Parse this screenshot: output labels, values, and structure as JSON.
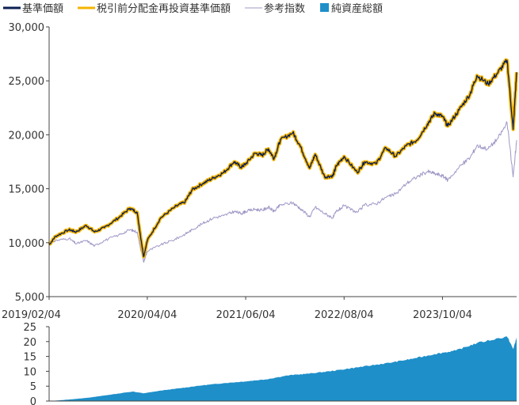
{
  "legend": [
    {
      "label": "基準価額",
      "color": "#0b1f55",
      "marker": "line"
    },
    {
      "label": "税引前分配金再投資基準価額",
      "color": "#f5b400",
      "marker": "line"
    },
    {
      "label": "参考指数",
      "color": "#9f97c6",
      "marker": "line"
    },
    {
      "label": "純資産総額",
      "color": "#1e8fc9",
      "marker": "square"
    }
  ],
  "chart_data": [
    {
      "type": "line",
      "y_ticks": [
        "30,000",
        "25,000",
        "20,000",
        "15,000",
        "10,000",
        "5,000"
      ],
      "y_tick_values": [
        30000,
        25000,
        20000,
        15000,
        10000,
        5000
      ],
      "ylim": [
        5000,
        30000
      ],
      "x_ticks": [
        "2019/02/04",
        "2020/04/04",
        "2021/06/04",
        "2022/08/04",
        "2023/10/04"
      ],
      "x_tick_dates": [
        "2019-02-04",
        "2020-04-04",
        "2021-06-04",
        "2022-08-04",
        "2023-10-04"
      ],
      "xlim": [
        "2019-02-04",
        "2024-08-20"
      ],
      "grid": false,
      "legend_position": "top",
      "series": [
        {
          "name": "税引前分配金再投資基準価額",
          "color": "#f5b400",
          "points": [
            [
              "2019-02-04",
              9800
            ],
            [
              "2019-03-04",
              10600
            ],
            [
              "2019-05-01",
              11200
            ],
            [
              "2019-06-01",
              11000
            ],
            [
              "2019-07-15",
              11600
            ],
            [
              "2019-08-20",
              11000
            ],
            [
              "2019-10-01",
              11400
            ],
            [
              "2019-12-01",
              12300
            ],
            [
              "2020-01-20",
              13200
            ],
            [
              "2020-02-20",
              12800
            ],
            [
              "2020-03-19",
              8700
            ],
            [
              "2020-04-04",
              10200
            ],
            [
              "2020-06-01",
              12300
            ],
            [
              "2020-08-01",
              13300
            ],
            [
              "2020-09-15",
              13800
            ],
            [
              "2020-10-15",
              14900
            ],
            [
              "2020-12-01",
              15500
            ],
            [
              "2021-01-15",
              16000
            ],
            [
              "2021-03-01",
              16500
            ],
            [
              "2021-04-15",
              17500
            ],
            [
              "2021-05-15",
              17000
            ],
            [
              "2021-06-04",
              17300
            ],
            [
              "2021-07-15",
              18300
            ],
            [
              "2021-08-15",
              18100
            ],
            [
              "2021-09-10",
              18700
            ],
            [
              "2021-10-05",
              17800
            ],
            [
              "2021-11-01",
              19500
            ],
            [
              "2021-12-25",
              20200
            ],
            [
              "2022-01-25",
              19000
            ],
            [
              "2022-03-08",
              16900
            ],
            [
              "2022-04-01",
              18200
            ],
            [
              "2022-05-12",
              16100
            ],
            [
              "2022-06-17",
              16200
            ],
            [
              "2022-07-01",
              17100
            ],
            [
              "2022-08-04",
              18000
            ],
            [
              "2022-09-30",
              16500
            ],
            [
              "2022-11-01",
              17500
            ],
            [
              "2022-12-20",
              17300
            ],
            [
              "2023-02-01",
              18800
            ],
            [
              "2023-03-15",
              18000
            ],
            [
              "2023-05-01",
              19000
            ],
            [
              "2023-06-15",
              19500
            ],
            [
              "2023-07-31",
              21000
            ],
            [
              "2023-09-01",
              22000
            ],
            [
              "2023-10-04",
              21700
            ],
            [
              "2023-10-27",
              20800
            ],
            [
              "2023-12-15",
              22300
            ],
            [
              "2024-02-01",
              23800
            ],
            [
              "2024-03-01",
              25500
            ],
            [
              "2024-04-19",
              24700
            ],
            [
              "2024-06-01",
              25800
            ],
            [
              "2024-07-10",
              26900
            ],
            [
              "2024-08-05",
              20500
            ],
            [
              "2024-08-20",
              25800
            ]
          ]
        },
        {
          "name": "基準価額",
          "color": "#0b1f55",
          "points": [
            [
              "2019-02-04",
              9800
            ],
            [
              "2019-03-04",
              10600
            ],
            [
              "2019-05-01",
              11200
            ],
            [
              "2019-06-01",
              11000
            ],
            [
              "2019-07-15",
              11600
            ],
            [
              "2019-08-20",
              11000
            ],
            [
              "2019-10-01",
              11400
            ],
            [
              "2019-12-01",
              12300
            ],
            [
              "2020-01-20",
              13200
            ],
            [
              "2020-02-20",
              12800
            ],
            [
              "2020-03-19",
              8700
            ],
            [
              "2020-04-04",
              10200
            ],
            [
              "2020-06-01",
              12300
            ],
            [
              "2020-08-01",
              13300
            ],
            [
              "2020-09-15",
              13800
            ],
            [
              "2020-10-15",
              14900
            ],
            [
              "2020-12-01",
              15500
            ],
            [
              "2021-01-15",
              16000
            ],
            [
              "2021-03-01",
              16500
            ],
            [
              "2021-04-15",
              17500
            ],
            [
              "2021-05-15",
              17000
            ],
            [
              "2021-06-04",
              17300
            ],
            [
              "2021-07-15",
              18300
            ],
            [
              "2021-08-15",
              18100
            ],
            [
              "2021-09-10",
              18700
            ],
            [
              "2021-10-05",
              17800
            ],
            [
              "2021-11-01",
              19500
            ],
            [
              "2021-12-25",
              20200
            ],
            [
              "2022-01-25",
              19000
            ],
            [
              "2022-03-08",
              16900
            ],
            [
              "2022-04-01",
              18200
            ],
            [
              "2022-05-12",
              16100
            ],
            [
              "2022-06-17",
              16200
            ],
            [
              "2022-07-01",
              17100
            ],
            [
              "2022-08-04",
              18000
            ],
            [
              "2022-09-30",
              16500
            ],
            [
              "2022-11-01",
              17500
            ],
            [
              "2022-12-20",
              17300
            ],
            [
              "2023-02-01",
              18800
            ],
            [
              "2023-03-15",
              18000
            ],
            [
              "2023-05-01",
              19000
            ],
            [
              "2023-06-15",
              19500
            ],
            [
              "2023-07-31",
              21000
            ],
            [
              "2023-09-01",
              22000
            ],
            [
              "2023-10-04",
              21700
            ],
            [
              "2023-10-27",
              20800
            ],
            [
              "2023-12-15",
              22300
            ],
            [
              "2024-02-01",
              23800
            ],
            [
              "2024-03-01",
              25500
            ],
            [
              "2024-04-19",
              24700
            ],
            [
              "2024-06-01",
              25800
            ],
            [
              "2024-07-10",
              26900
            ],
            [
              "2024-08-05",
              20500
            ],
            [
              "2024-08-20",
              25800
            ]
          ]
        },
        {
          "name": "参考指数",
          "color": "#9f97c6",
          "points": [
            [
              "2019-02-04",
              9900
            ],
            [
              "2019-03-04",
              10200
            ],
            [
              "2019-05-01",
              10400
            ],
            [
              "2019-06-01",
              9900
            ],
            [
              "2019-07-15",
              10200
            ],
            [
              "2019-08-20",
              9700
            ],
            [
              "2019-10-01",
              10200
            ],
            [
              "2019-12-01",
              10700
            ],
            [
              "2020-01-20",
              11200
            ],
            [
              "2020-02-20",
              11000
            ],
            [
              "2020-03-19",
              8200
            ],
            [
              "2020-04-04",
              9200
            ],
            [
              "2020-06-01",
              9800
            ],
            [
              "2020-08-01",
              10300
            ],
            [
              "2020-09-15",
              10800
            ],
            [
              "2020-10-15",
              11200
            ],
            [
              "2020-12-01",
              11800
            ],
            [
              "2021-01-15",
              12300
            ],
            [
              "2021-03-01",
              12500
            ],
            [
              "2021-04-15",
              12900
            ],
            [
              "2021-05-15",
              12700
            ],
            [
              "2021-06-04",
              12900
            ],
            [
              "2021-07-15",
              13100
            ],
            [
              "2021-08-15",
              13000
            ],
            [
              "2021-09-10",
              13300
            ],
            [
              "2021-10-05",
              12900
            ],
            [
              "2021-11-01",
              13500
            ],
            [
              "2021-12-25",
              13700
            ],
            [
              "2022-01-25",
              13200
            ],
            [
              "2022-03-08",
              12400
            ],
            [
              "2022-04-01",
              13300
            ],
            [
              "2022-05-12",
              12700
            ],
            [
              "2022-06-17",
              12300
            ],
            [
              "2022-07-01",
              12900
            ],
            [
              "2022-08-04",
              13400
            ],
            [
              "2022-09-30",
              12800
            ],
            [
              "2022-11-01",
              13500
            ],
            [
              "2022-12-20",
              13600
            ],
            [
              "2023-02-01",
              14200
            ],
            [
              "2023-03-15",
              14500
            ],
            [
              "2023-05-01",
              15500
            ],
            [
              "2023-06-15",
              16100
            ],
            [
              "2023-07-31",
              16600
            ],
            [
              "2023-09-01",
              16400
            ],
            [
              "2023-10-04",
              16200
            ],
            [
              "2023-10-27",
              15800
            ],
            [
              "2023-12-15",
              17000
            ],
            [
              "2024-02-01",
              17900
            ],
            [
              "2024-03-01",
              19000
            ],
            [
              "2024-04-19",
              18700
            ],
            [
              "2024-06-01",
              19700
            ],
            [
              "2024-07-10",
              21100
            ],
            [
              "2024-08-05",
              16100
            ],
            [
              "2024-08-20",
              19500
            ]
          ]
        }
      ]
    },
    {
      "type": "area",
      "series_name": "純資産総額",
      "color": "#1e8fc9",
      "y_ticks": [
        "25",
        "20",
        "15",
        "10",
        "5",
        "0"
      ],
      "y_tick_values": [
        25,
        20,
        15,
        10,
        5,
        0
      ],
      "ylim": [
        0,
        25
      ],
      "xlim": [
        "2019-02-04",
        "2024-08-20"
      ],
      "grid": false,
      "points": [
        [
          "2019-02-04",
          0
        ],
        [
          "2019-05-01",
          0.5
        ],
        [
          "2019-08-01",
          1.2
        ],
        [
          "2019-11-01",
          2.2
        ],
        [
          "2020-02-01",
          3.2
        ],
        [
          "2020-03-19",
          2.6
        ],
        [
          "2020-06-01",
          3.5
        ],
        [
          "2020-09-01",
          4.4
        ],
        [
          "2020-12-01",
          5.3
        ],
        [
          "2021-03-01",
          6.0
        ],
        [
          "2021-06-01",
          6.6
        ],
        [
          "2021-09-01",
          7.3
        ],
        [
          "2021-12-01",
          8.6
        ],
        [
          "2022-03-01",
          9.2
        ],
        [
          "2022-06-01",
          10.0
        ],
        [
          "2022-09-01",
          11.0
        ],
        [
          "2022-12-01",
          12.0
        ],
        [
          "2023-03-01",
          13.0
        ],
        [
          "2023-06-01",
          14.3
        ],
        [
          "2023-09-01",
          15.8
        ],
        [
          "2023-12-01",
          17.0
        ],
        [
          "2024-03-01",
          19.5
        ],
        [
          "2024-07-10",
          21.7
        ],
        [
          "2024-08-05",
          17.5
        ],
        [
          "2024-08-20",
          21.3
        ]
      ]
    }
  ]
}
